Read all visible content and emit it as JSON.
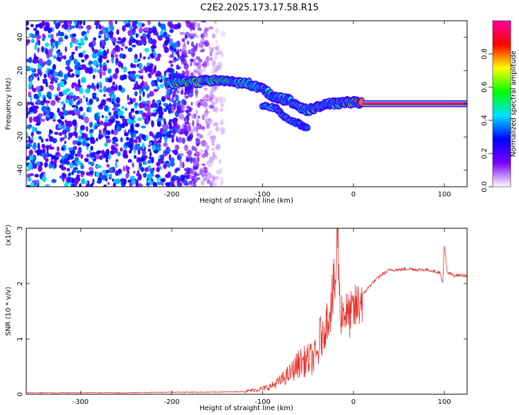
{
  "title": "C2E2.2025.173.17.58.R15",
  "chart_data": [
    {
      "type": "heatmap",
      "xlabel": "Height of straight line (km)",
      "ylabel": "Frequency (Hz)",
      "xlim": [
        -360,
        125
      ],
      "ylim": [
        -50,
        50
      ],
      "x_ticks": [
        -300,
        -200,
        -100,
        0,
        100
      ],
      "y_ticks": [
        -40,
        -20,
        0,
        20,
        40
      ],
      "colorbar": {
        "label": "Normalized spectral amplitude",
        "ticks": [
          0.0,
          0.2,
          0.4,
          0.6,
          0.8
        ],
        "tick_labels": [
          "0.0",
          "0.2",
          "0.4",
          "0.6",
          "0.8"
        ],
        "range": [
          0,
          1
        ],
        "colors": [
          "#ffffff",
          "#7a00ff",
          "#0000ff",
          "#00e0ff",
          "#00ff00",
          "#ffff00",
          "#ff0000",
          "#ff00a0"
        ]
      },
      "noise_region": {
        "x": [
          -360,
          -140
        ],
        "y": [
          -50,
          50
        ],
        "level": 0.35
      },
      "band": [
        {
          "x": -205,
          "y": 12,
          "amp": 0.55
        },
        {
          "x": -190,
          "y": 13,
          "amp": 0.6
        },
        {
          "x": -175,
          "y": 13,
          "amp": 0.75
        },
        {
          "x": -160,
          "y": 14,
          "amp": 0.65
        },
        {
          "x": -145,
          "y": 14,
          "amp": 0.6
        },
        {
          "x": -130,
          "y": 13,
          "amp": 0.55
        },
        {
          "x": -115,
          "y": 12,
          "amp": 0.55
        },
        {
          "x": -100,
          "y": 9,
          "amp": 0.5
        },
        {
          "x": -90,
          "y": 5,
          "amp": 0.5
        },
        {
          "x": -80,
          "y": 3,
          "amp": 0.45
        },
        {
          "x": -70,
          "y": 2,
          "amp": 0.5
        },
        {
          "x": -60,
          "y": -2,
          "amp": 0.5
        },
        {
          "x": -50,
          "y": -4,
          "amp": 0.55
        },
        {
          "x": -40,
          "y": -2,
          "amp": 0.6
        },
        {
          "x": -30,
          "y": 0,
          "amp": 0.5
        },
        {
          "x": -20,
          "y": 0,
          "amp": 0.6
        },
        {
          "x": -10,
          "y": 1,
          "amp": 0.65
        },
        {
          "x": 0,
          "y": 1,
          "amp": 0.75
        },
        {
          "x": 10,
          "y": 0,
          "amp": 0.9
        }
      ],
      "lower_branch": [
        {
          "x": -100,
          "y": -1,
          "amp": 0.5
        },
        {
          "x": -85,
          "y": -3,
          "amp": 0.45
        },
        {
          "x": -75,
          "y": -8,
          "amp": 0.4
        },
        {
          "x": -60,
          "y": -12,
          "amp": 0.35
        },
        {
          "x": -50,
          "y": -15,
          "amp": 0.3
        }
      ],
      "steady_line": {
        "x": [
          10,
          125
        ],
        "y": 0,
        "amp": 0.95
      }
    },
    {
      "type": "line",
      "xlabel": "Height of straight line (km)",
      "ylabel": "SNR (10 * v/v)",
      "y_multiplier": "(x10⁴)",
      "xlim": [
        -360,
        125
      ],
      "ylim": [
        0,
        3
      ],
      "x_ticks": [
        -300,
        -200,
        -100,
        0,
        100
      ],
      "y_ticks": [
        0,
        1,
        2,
        3
      ],
      "series": [
        {
          "color": "#e8302a",
          "x": [
            -360,
            -300,
            -250,
            -200,
            -160,
            -120,
            -100,
            -90,
            -80,
            -70,
            -60,
            -50,
            -40,
            -30,
            -25,
            -20,
            -17,
            -15,
            -10,
            -5,
            0,
            5,
            10,
            20,
            30,
            40,
            50,
            60,
            70,
            80,
            90,
            95,
            98,
            100,
            103,
            110,
            125
          ],
          "y": [
            0.02,
            0.02,
            0.02,
            0.03,
            0.03,
            0.04,
            0.08,
            0.12,
            0.2,
            0.3,
            0.45,
            0.5,
            0.55,
            1.3,
            1.6,
            2.0,
            3.0,
            1.5,
            1.5,
            1.4,
            1.5,
            1.6,
            1.8,
            2.0,
            2.15,
            2.25,
            2.25,
            2.27,
            2.25,
            2.25,
            2.22,
            2.2,
            2.0,
            2.7,
            2.2,
            2.15,
            2.15
          ]
        }
      ]
    }
  ]
}
